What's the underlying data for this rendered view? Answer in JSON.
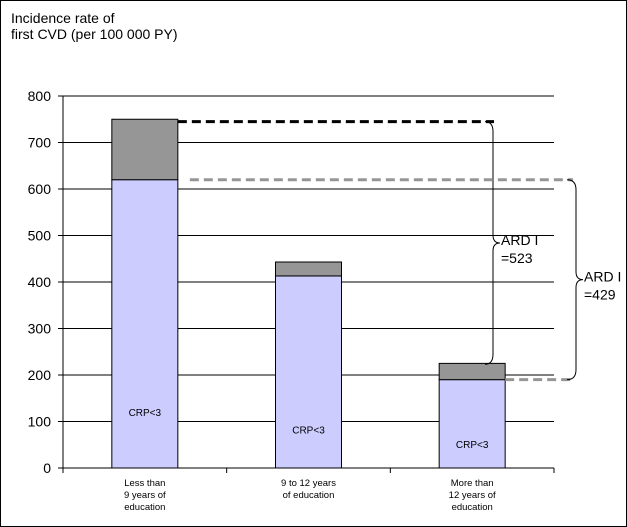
{
  "chart_data": {
    "type": "bar",
    "stacked": true,
    "title_lines": [
      "Incidence rate of",
      "first CVD (per 100 000 PY)"
    ],
    "categories": [
      [
        "Less than",
        "9 years of",
        "education"
      ],
      [
        "9 to 12 years",
        "of education"
      ],
      [
        "More than",
        "12 years of",
        "education"
      ]
    ],
    "series": [
      {
        "values": [
          620,
          413,
          190
        ],
        "color": "#ccccff",
        "segment_label": "CRP<3"
      },
      {
        "values": [
          130,
          30,
          35
        ],
        "color": "#969696"
      }
    ],
    "ylim": [
      0,
      800
    ],
    "yticks": [
      0,
      100,
      200,
      300,
      400,
      500,
      600,
      700,
      800
    ],
    "grid": true,
    "annotations": [
      {
        "lines": [
          "ARD I",
          "=523"
        ],
        "from": 223,
        "to": 745,
        "color": "#000000"
      },
      {
        "lines": [
          "ARD I",
          "=429"
        ],
        "from": 190,
        "to": 620,
        "color": "#969696"
      }
    ]
  }
}
